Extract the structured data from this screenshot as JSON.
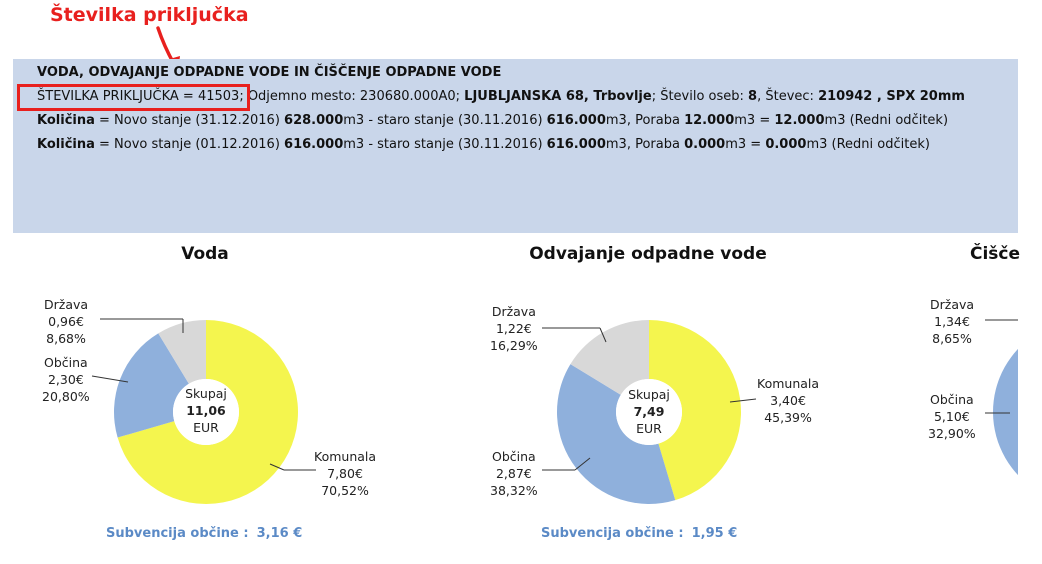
{
  "annotation": {
    "label": "Številka priključka"
  },
  "info": {
    "heading": "VODA, ODVAJANJE ODPADNE VODE IN ČIŠČENJE ODPADNE VODE",
    "connection_label": "ŠTEVILKA PRIKLJUČKA = 41503",
    "connection_rest_1": "; Odjemno mesto: 230680.000A0; ",
    "address": "LJUBLJANSKA  68, Trbovlje",
    "persons_label": "; Število oseb: ",
    "persons": "8",
    "meter_label": ", Števec: ",
    "meter": "210942 , SPX 20mm",
    "rows": [
      {
        "label": "Količina",
        "t1": " = Novo stanje (31.12.2016) ",
        "new": "628.000",
        "t2": "m3 - staro stanje (30.11.2016) ",
        "old": "616.000",
        "t3": "m3, Poraba ",
        "use": "12.000",
        "t4": "m3 = ",
        "total": "12.000",
        "t5": "m3 (Redni odčitek)"
      },
      {
        "label": "Količina",
        "t1": " = Novo stanje (01.12.2016) ",
        "new": "616.000",
        "t2": "m3 - staro stanje (30.11.2016) ",
        "old": "616.000",
        "t3": "m3, Poraba ",
        "use": "0.000",
        "t4": "m3 = ",
        "total": "0.000",
        "t5": "m3 (Redni odčitek)"
      }
    ]
  },
  "chart_data": [
    {
      "type": "pie",
      "title": "Voda",
      "center": {
        "line1": "Skupaj",
        "value": "11,06",
        "line3": "EUR"
      },
      "slices": [
        {
          "name": "Komunala",
          "amount": "7,80€",
          "percent": "70,52%",
          "value": 70.52,
          "color": "#f4f54e"
        },
        {
          "name": "Občina",
          "amount": "2,30€",
          "percent": "20,80%",
          "value": 20.8,
          "color": "#8fb0dc"
        },
        {
          "name": "Država",
          "amount": "0,96€",
          "percent": "8,68%",
          "value": 8.68,
          "color": "#d8d8d8"
        }
      ],
      "subsidy": {
        "label": "Subvencija občine :",
        "value": "3,16 €"
      }
    },
    {
      "type": "pie",
      "title": "Odvajanje odpadne vode",
      "center": {
        "line1": "Skupaj",
        "value": "7,49",
        "line3": "EUR"
      },
      "slices": [
        {
          "name": "Komunala",
          "amount": "3,40€",
          "percent": "45,39%",
          "value": 45.39,
          "color": "#f4f54e"
        },
        {
          "name": "Občina",
          "amount": "2,87€",
          "percent": "38,32%",
          "value": 38.32,
          "color": "#8fb0dc"
        },
        {
          "name": "Država",
          "amount": "1,22€",
          "percent": "16,29%",
          "value": 16.29,
          "color": "#d8d8d8"
        }
      ],
      "subsidy": {
        "label": "Subvencija občine :",
        "value": "1,95 €"
      }
    },
    {
      "type": "pie",
      "title": "Čišče",
      "slices": [
        {
          "name": "Občina",
          "amount": "5,10€",
          "percent": "32,90%",
          "value": 32.9,
          "color": "#8fb0dc"
        },
        {
          "name": "Država",
          "amount": "1,34€",
          "percent": "8,65%",
          "value": 8.65,
          "color": "#d8d8d8"
        }
      ]
    }
  ]
}
